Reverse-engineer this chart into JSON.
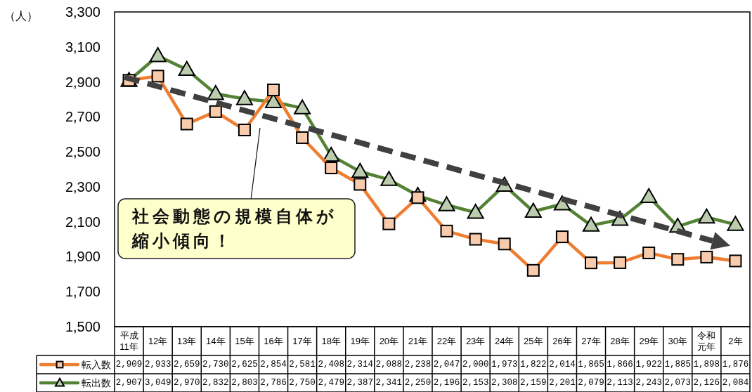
{
  "chart_data": {
    "type": "line",
    "ylabel": "（人）",
    "categories": [
      "平成11年",
      "12年",
      "13年",
      "14年",
      "15年",
      "16年",
      "17年",
      "18年",
      "19年",
      "20年",
      "21年",
      "22年",
      "23年",
      "24年",
      "25年",
      "26年",
      "27年",
      "28年",
      "29年",
      "30年",
      "令和元年",
      "2年"
    ],
    "series": [
      {
        "name": "転入数",
        "color": "#ed7d31",
        "marker": "square",
        "values": [
          2909,
          2933,
          2659,
          2730,
          2625,
          2854,
          2581,
          2408,
          2314,
          2088,
          2238,
          2047,
          2000,
          1973,
          1822,
          2014,
          1865,
          1866,
          1922,
          1885,
          1898,
          1876
        ],
        "value_labels": [
          "2,909",
          "2,933",
          "2,659",
          "2,730",
          "2,625",
          "2,854",
          "2,581",
          "2,408",
          "2,314",
          "2,088",
          "2,238",
          "2,047",
          "2,000",
          "1,973",
          "1,822",
          "2,014",
          "1,865",
          "1,866",
          "1,922",
          "1,885",
          "1,898",
          "1,876"
        ]
      },
      {
        "name": "転出数",
        "color": "#548235",
        "marker": "triangle",
        "values": [
          2907,
          3049,
          2970,
          2832,
          2803,
          2786,
          2750,
          2479,
          2387,
          2341,
          2250,
          2196,
          2153,
          2308,
          2159,
          2201,
          2079,
          2113,
          2243,
          2073,
          2126,
          2084
        ],
        "value_labels": [
          "2,907",
          "3,049",
          "2,970",
          "2,832",
          "2,803",
          "2,786",
          "2,750",
          "2,479",
          "2,387",
          "2,341",
          "2,250",
          "2,196",
          "2,153",
          "2,308",
          "2,159",
          "2,201",
          "2,079",
          "2,113",
          "2,243",
          "2,073",
          "2,126",
          "2,084"
        ]
      }
    ],
    "ylim": [
      1500,
      3300
    ],
    "yticks": [
      {
        "value": 1500,
        "label": "1,500"
      },
      {
        "value": 1700,
        "label": "1,700"
      },
      {
        "value": 1900,
        "label": "1,900"
      },
      {
        "value": 2100,
        "label": "2,100"
      },
      {
        "value": 2300,
        "label": "2,300"
      },
      {
        "value": 2500,
        "label": "2,500"
      },
      {
        "value": 2700,
        "label": "2,700"
      },
      {
        "value": 2900,
        "label": "2,900"
      },
      {
        "value": 3100,
        "label": "3,100"
      },
      {
        "value": 3300,
        "label": "3,300"
      }
    ],
    "annotations": [
      "社会動態の規模自体が縮小傾向！"
    ],
    "legend": "bottom"
  }
}
